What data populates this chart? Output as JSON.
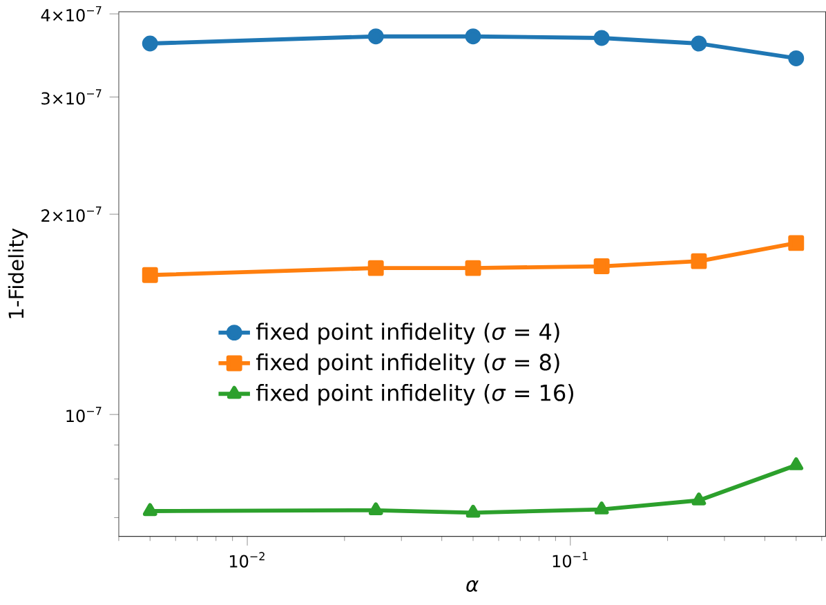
{
  "chart_data": {
    "type": "line",
    "xlabel": "*α*",
    "ylabel": "1-Fidelity",
    "log": "xy",
    "legend": "center",
    "line_style": "solid",
    "xlim": [
      0.004,
      0.617
    ],
    "ylim": [
      6.56e-08,
      4.03e-07
    ],
    "xticks": [
      {
        "value": 0.01,
        "label": "10$^{−2}$"
      },
      {
        "value": 0.1,
        "label": "10$^{−1}$"
      },
      {
        "value": 0.004,
        "label": null
      },
      {
        "value": 0.005,
        "label": null
      },
      {
        "value": 0.006,
        "label": null
      },
      {
        "value": 0.007,
        "label": null
      },
      {
        "value": 0.008,
        "label": null
      },
      {
        "value": 0.009,
        "label": null
      },
      {
        "value": 0.02,
        "label": null
      },
      {
        "value": 0.03,
        "label": null
      },
      {
        "value": 0.04,
        "label": null
      },
      {
        "value": 0.05,
        "label": null
      },
      {
        "value": 0.06,
        "label": null
      },
      {
        "value": 0.07,
        "label": null
      },
      {
        "value": 0.08,
        "label": null
      },
      {
        "value": 0.09,
        "label": null
      },
      {
        "value": 0.2,
        "label": null
      },
      {
        "value": 0.3,
        "label": null
      },
      {
        "value": 0.4,
        "label": null
      },
      {
        "value": 0.5,
        "label": null
      },
      {
        "value": 0.6,
        "label": null
      }
    ],
    "yticks": [
      {
        "value": 1e-07,
        "label": "10$^{−7}$"
      },
      {
        "value": 2e-07,
        "label": "2×10$^{−7}$"
      },
      {
        "value": 3e-07,
        "label": "3×10$^{−7}$"
      },
      {
        "value": 4e-07,
        "label": "4×10$^{−7}$"
      },
      {
        "value": 7e-08,
        "label": null
      },
      {
        "value": 8e-08,
        "label": null
      },
      {
        "value": 9e-08,
        "label": null
      }
    ],
    "x": [
      0.005,
      0.025,
      0.05,
      0.125,
      0.25,
      0.5
    ],
    "series": [
      {
        "name": "fixed point infidelity (*σ* = 4)",
        "color": "#1f77b4",
        "marker": "circle",
        "values": [
          3.61e-07,
          3.7e-07,
          3.7e-07,
          3.68e-07,
          3.61e-07,
          3.43e-07
        ]
      },
      {
        "name": "fixed point infidelity (*σ* = 8)",
        "color": "#ff7f0e",
        "marker": "square",
        "values": [
          1.62e-07,
          1.66e-07,
          1.66e-07,
          1.67e-07,
          1.7e-07,
          1.81e-07
        ]
      },
      {
        "name": "fixed point infidelity (*σ* = 16)",
        "color": "#2ca02c",
        "marker": "triangle",
        "values": [
          7.16e-08,
          7.18e-08,
          7.12e-08,
          7.2e-08,
          7.43e-08,
          8.39e-08
        ]
      }
    ]
  }
}
